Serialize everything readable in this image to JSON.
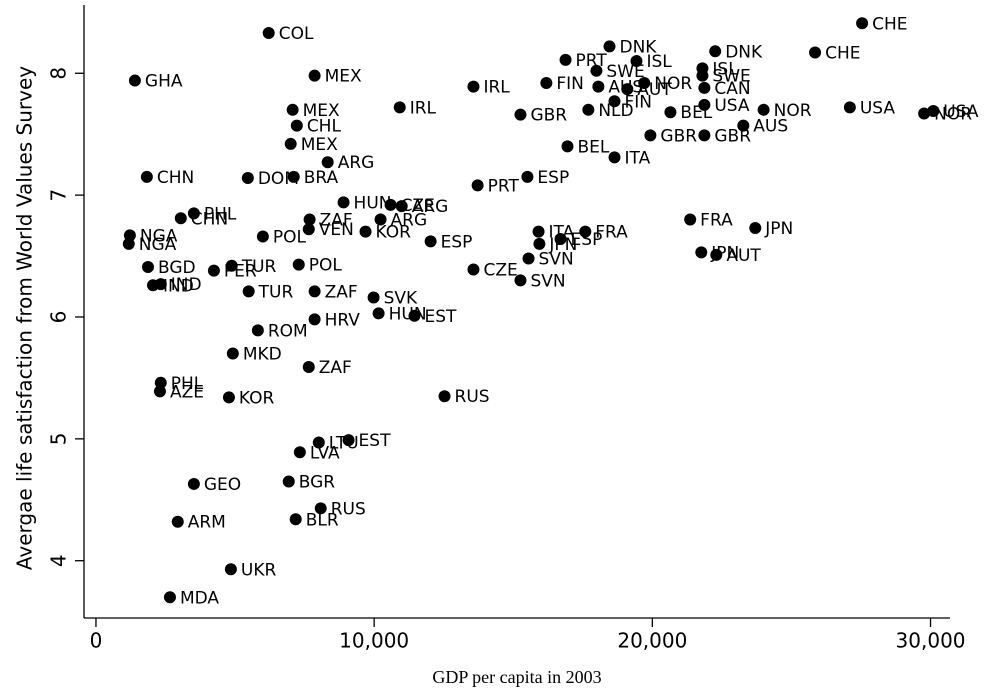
{
  "chart_data": {
    "type": "scatter",
    "color": "#000000",
    "xlabel": "GDP per capita in 2003",
    "ylabel": "Avergae life satisfaction from World Values Survey",
    "xlim": [
      -430,
      30700
    ],
    "ylim": [
      3.53,
      8.56
    ],
    "xticks": [
      0,
      {
        "value": 10000,
        "label": "10,000"
      },
      {
        "value": 20000,
        "label": "20,000"
      },
      {
        "value": 30000,
        "label": "30,000"
      }
    ],
    "yticks": [
      4,
      5,
      6,
      7,
      8
    ],
    "point_labels": [
      "CHE",
      "COL",
      "CHE",
      "DNK",
      "DNK",
      "ISL",
      "PRT",
      "SWE",
      "ISL",
      "SWE",
      "CAN",
      "MEX",
      "GHA",
      "FIN",
      "AUS",
      "NOR",
      "AUT",
      "IRL",
      "NLD",
      "FIN",
      "BEL",
      "USA",
      "NOR",
      "USA",
      "NOR",
      "USA",
      "MEX",
      "IRL",
      "GBR",
      "CHL",
      "AUS",
      "GBR",
      "GBR",
      "MEX",
      "BEL",
      "ARG",
      "ITA",
      "CHN",
      "DOM",
      "BRA",
      "ESP",
      "PRT",
      "HUN",
      "CZE",
      "ARG",
      "PHL",
      "CHN",
      "ZAF",
      "ARG",
      "FRA",
      "JPN",
      "NGA",
      "NGA",
      "VEN",
      "KOR",
      "ITA",
      "FRA",
      "ESP",
      "JPN",
      "POL",
      "ESP",
      "JPN",
      "AUT",
      "BGD",
      "PER",
      "TUR",
      "POL",
      "SVN",
      "CZE",
      "SVN",
      "IND",
      "IND",
      "TUR",
      "ZAF",
      "SVK",
      "HUN",
      "EST",
      "HRV",
      "ROM",
      "MKD",
      "ZAF",
      "PHL",
      "AZE",
      "KOR",
      "RUS",
      "EST",
      "LTU",
      "LVA",
      "GEO",
      "BGR",
      "RUS",
      "BLR",
      "ARM",
      "UKR",
      "MDA"
    ],
    "x": [
      27540,
      6210,
      25850,
      18460,
      22260,
      19430,
      16880,
      17990,
      21800,
      21800,
      21870,
      7860,
      1400,
      16190,
      18060,
      19710,
      19100,
      13570,
      17700,
      18640,
      20650,
      21870,
      24000,
      27100,
      29770,
      30100,
      7070,
      10920,
      15260,
      7220,
      23270,
      19930,
      21870,
      7000,
      16950,
      8330,
      18640,
      1830,
      5460,
      7110,
      15510,
      13720,
      8900,
      10590,
      10990,
      3520,
      3050,
      7680,
      10230,
      21360,
      23700,
      1220,
      1180,
      7650,
      9690,
      15910,
      17590,
      16700,
      15940,
      6000,
      12030,
      21760,
      22300,
      1870,
      4240,
      4880,
      7290,
      15550,
      13570,
      15260,
      2050,
      2330,
      5490,
      7860,
      9980,
      10160,
      11450,
      7860,
      5820,
      4920,
      7650,
      2330,
      2300,
      4780,
      12530,
      9080,
      8010,
      7330,
      3520,
      6930,
      8080,
      7180,
      2940,
      4850,
      2660
    ],
    "values": [
      8.41,
      8.33,
      8.17,
      8.22,
      8.18,
      8.1,
      8.11,
      8.02,
      8.04,
      7.98,
      7.88,
      7.98,
      7.94,
      7.92,
      7.89,
      7.92,
      7.87,
      7.89,
      7.7,
      7.77,
      7.68,
      7.74,
      7.7,
      7.72,
      7.67,
      7.69,
      7.7,
      7.72,
      7.66,
      7.57,
      7.57,
      7.49,
      7.49,
      7.42,
      7.4,
      7.27,
      7.31,
      7.15,
      7.14,
      7.15,
      7.15,
      7.08,
      6.94,
      6.92,
      6.91,
      6.85,
      6.81,
      6.8,
      6.8,
      6.8,
      6.73,
      6.67,
      6.6,
      6.72,
      6.7,
      6.7,
      6.7,
      6.64,
      6.6,
      6.66,
      6.62,
      6.53,
      6.51,
      6.41,
      6.38,
      6.42,
      6.43,
      6.48,
      6.39,
      6.3,
      6.26,
      6.27,
      6.21,
      6.21,
      6.16,
      6.03,
      6.01,
      5.98,
      5.89,
      5.7,
      5.59,
      5.46,
      5.39,
      5.34,
      5.35,
      4.99,
      4.97,
      4.89,
      4.63,
      4.65,
      4.43,
      4.34,
      4.32,
      3.93,
      3.7
    ]
  }
}
